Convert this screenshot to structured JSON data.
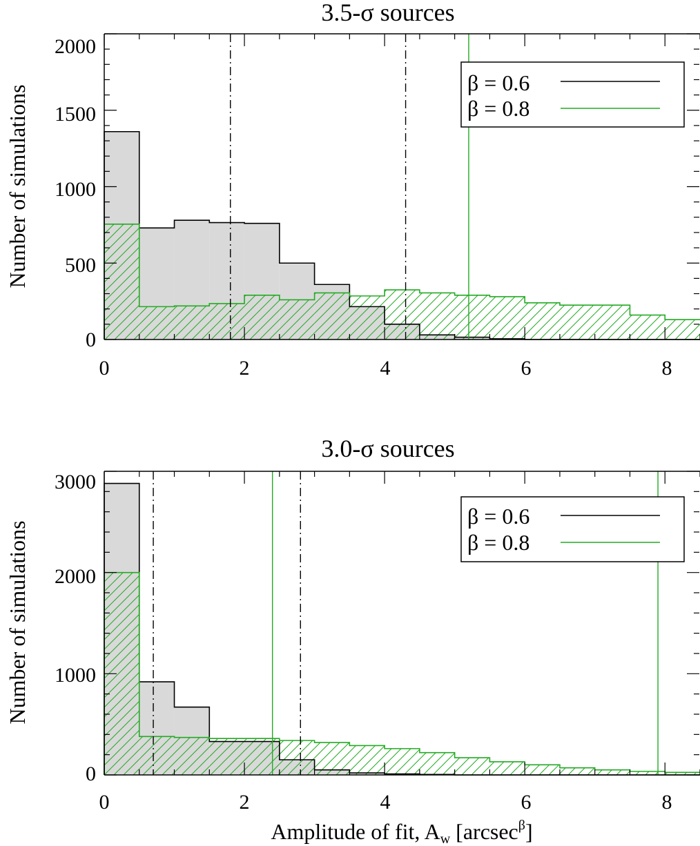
{
  "chart_data": [
    {
      "type": "histogram",
      "title": "3.5-σ sources",
      "xlabel": "",
      "ylabel": "Number of simulations",
      "xlim": [
        0,
        8.5
      ],
      "ylim": [
        0,
        2000
      ],
      "bin_width": 0.5,
      "x_ticks": [
        "0",
        "2",
        "4",
        "6",
        "8"
      ],
      "y_ticks": [
        "0",
        "500",
        "1000",
        "1500",
        "2000"
      ],
      "legend_position": "top-right",
      "series": [
        {
          "name": "β = 0.6",
          "color": "#000000",
          "fill": "#d9d9d9",
          "bin_edges": [
            0,
            0.5,
            1.0,
            1.5,
            2.0,
            2.5,
            3.0,
            3.5,
            4.0,
            4.5,
            5.0,
            5.5,
            6.0,
            6.5,
            7.0,
            7.5,
            8.0,
            8.5
          ],
          "values": [
            1360,
            730,
            780,
            765,
            760,
            500,
            360,
            215,
            100,
            30,
            15,
            5,
            0,
            0,
            0,
            0,
            0
          ]
        },
        {
          "name": "β = 0.8",
          "color": "#22aa22",
          "fill": "hatched",
          "bin_edges": [
            0,
            0.5,
            1.0,
            1.5,
            2.0,
            2.5,
            3.0,
            3.5,
            4.0,
            4.5,
            5.0,
            5.5,
            6.0,
            6.5,
            7.0,
            7.5,
            8.0,
            8.5
          ],
          "values": [
            755,
            215,
            220,
            235,
            290,
            260,
            305,
            285,
            325,
            305,
            290,
            280,
            240,
            225,
            225,
            160,
            130
          ]
        }
      ],
      "vlines": [
        {
          "x": 1.8,
          "style": "dash-dot",
          "color": "#000000"
        },
        {
          "x": 4.3,
          "style": "dash-dot",
          "color": "#000000"
        },
        {
          "x": 5.2,
          "style": "solid",
          "color": "#22aa22"
        }
      ]
    },
    {
      "type": "histogram",
      "title": "3.0-σ sources",
      "xlabel": "Amplitude of fit, A_w [arcsec^β]",
      "ylabel": "Number of simulations",
      "xlim": [
        0,
        8.5
      ],
      "ylim": [
        0,
        3000
      ],
      "bin_width": 0.5,
      "x_ticks": [
        "0",
        "2",
        "4",
        "6",
        "8"
      ],
      "y_ticks": [
        "0",
        "1000",
        "2000",
        "3000"
      ],
      "legend_position": "top-right",
      "series": [
        {
          "name": "β = 0.6",
          "color": "#000000",
          "fill": "#d9d9d9",
          "bin_edges": [
            0,
            0.5,
            1.0,
            1.5,
            2.0,
            2.5,
            3.0,
            3.5,
            4.0,
            4.5,
            5.0,
            5.5,
            6.0,
            6.5,
            7.0,
            7.5,
            8.0,
            8.5
          ],
          "values": [
            2880,
            920,
            670,
            330,
            330,
            150,
            50,
            20,
            10,
            5,
            0,
            0,
            0,
            0,
            0,
            0,
            0
          ]
        },
        {
          "name": "β = 0.8",
          "color": "#22aa22",
          "fill": "hatched",
          "bin_edges": [
            0,
            0.5,
            1.0,
            1.5,
            2.0,
            2.5,
            3.0,
            3.5,
            4.0,
            4.5,
            5.0,
            5.5,
            6.0,
            6.5,
            7.0,
            7.5,
            8.0,
            8.5
          ],
          "values": [
            2000,
            380,
            370,
            360,
            360,
            340,
            320,
            290,
            260,
            220,
            170,
            130,
            100,
            70,
            50,
            35,
            25
          ]
        }
      ],
      "vlines": [
        {
          "x": 0.7,
          "style": "dash-dot",
          "color": "#000000"
        },
        {
          "x": 2.8,
          "style": "dash-dot",
          "color": "#000000"
        },
        {
          "x": 2.4,
          "style": "solid",
          "color": "#22aa22"
        },
        {
          "x": 7.9,
          "style": "solid",
          "color": "#22aa22"
        }
      ]
    }
  ],
  "panels": [
    {
      "title_text": "3.5-σ sources",
      "ylabel": "Number of simulations",
      "xtick_labels": [
        "0",
        "2",
        "4",
        "6",
        "8"
      ],
      "ytick_labels": [
        "0",
        "500",
        "1000",
        "1500",
        "2000"
      ],
      "legend": [
        "β = 0.6",
        "β = 0.8"
      ]
    },
    {
      "title_text": "3.0-σ sources",
      "ylabel": "Number of simulations",
      "xlabel_main": "Amplitude of fit, A",
      "xlabel_sub": "w",
      "xlabel_mid": " [arcsec",
      "xlabel_sup": "β",
      "xlabel_end": "]",
      "xtick_labels": [
        "0",
        "2",
        "4",
        "6",
        "8"
      ],
      "ytick_labels": [
        "0",
        "1000",
        "2000",
        "3000"
      ],
      "legend": [
        "β = 0.6",
        "β = 0.8"
      ]
    }
  ]
}
